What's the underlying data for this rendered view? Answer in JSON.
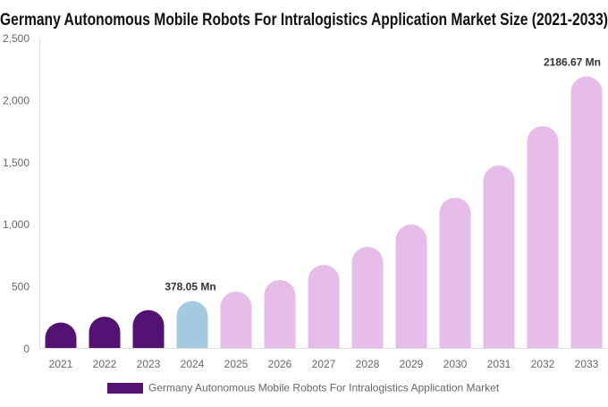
{
  "chart_data": {
    "type": "bar",
    "title": "Germany Autonomous Mobile Robots For Intralogistics Application Market Size (2021-2033)",
    "categories": [
      "2021",
      "2022",
      "2023",
      "2024",
      "2025",
      "2026",
      "2027",
      "2028",
      "2029",
      "2030",
      "2031",
      "2032",
      "2033"
    ],
    "series": [
      {
        "name": "Germany Autonomous Mobile Robots For Intralogistics Application Market",
        "values": [
          205,
          252,
          305,
          378.05,
          454,
          548,
          670,
          814,
          994,
          1210,
          1470,
          1787,
          2186.67
        ]
      }
    ],
    "bar_colors": [
      "#541373",
      "#541373",
      "#541373",
      "#a3cadf",
      "#e6bde8",
      "#e6bde8",
      "#e6bde8",
      "#e6bde8",
      "#e6bde8",
      "#e6bde8",
      "#e6bde8",
      "#e6bde8",
      "#e6bde8"
    ],
    "data_labels": [
      {
        "category": "2024",
        "text": "378.05 Mn"
      },
      {
        "category": "2033",
        "text": "2186.67 Mn"
      }
    ],
    "yticks": [
      "0",
      "500",
      "1,000",
      "1,500",
      "2,000",
      "2,500"
    ],
    "ylim": [
      0,
      2500
    ],
    "xlabel": "",
    "ylabel": "",
    "grid": false,
    "legend_position": "bottom",
    "legend_color": "#541373"
  }
}
